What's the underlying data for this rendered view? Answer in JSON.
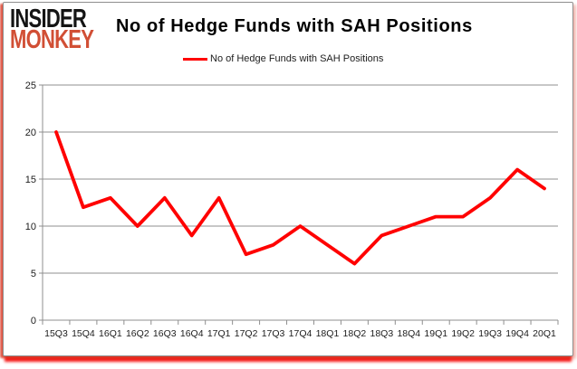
{
  "logo": {
    "line1": "INSIDER",
    "line2": "MONKEY"
  },
  "header": {
    "title": "No of Hedge Funds with SAH Positions"
  },
  "legend": {
    "label": "No of Hedge Funds with SAH Positions"
  },
  "colors": {
    "line_red": "#ff0000",
    "logo_red": "#d14f35",
    "logo_black": "#141414",
    "grid_gray": "#8f8f8f",
    "axis_text": "#1c1c1c",
    "frame_red": "#e33a23"
  },
  "chart_data": {
    "type": "line",
    "title": "No of Hedge Funds with SAH Positions",
    "categories": [
      "15Q3",
      "15Q4",
      "16Q1",
      "16Q2",
      "16Q3",
      "16Q4",
      "17Q1",
      "17Q2",
      "17Q3",
      "17Q4",
      "18Q1",
      "18Q2",
      "18Q3",
      "18Q4",
      "19Q1",
      "19Q2",
      "19Q3",
      "19Q4",
      "20Q1"
    ],
    "series": [
      {
        "name": "No of Hedge Funds with SAH Positions",
        "values": [
          20,
          12,
          13,
          10,
          13,
          9,
          13,
          7,
          8,
          10,
          8,
          6,
          9,
          10,
          11,
          11,
          13,
          16,
          14
        ]
      }
    ],
    "ylim": [
      0,
      25
    ],
    "yticks": [
      0,
      5,
      10,
      15,
      20,
      25
    ],
    "grid": true,
    "legend_position": "top-center",
    "line_color": "#ff0000"
  }
}
